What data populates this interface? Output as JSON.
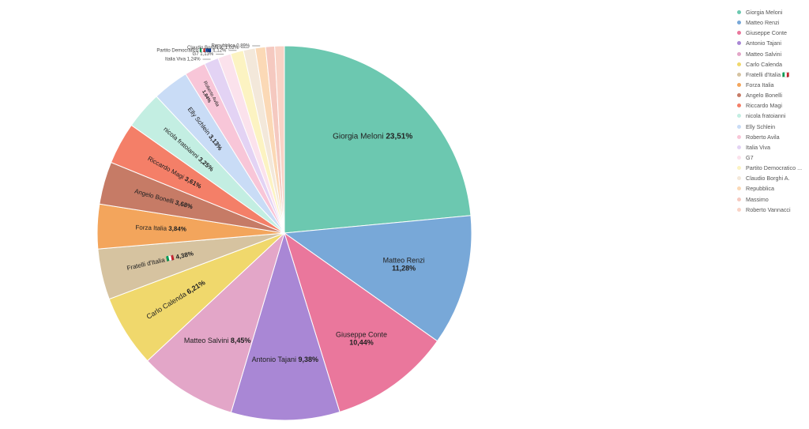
{
  "chart_data": {
    "type": "pie",
    "slices": [
      {
        "name": "Giorgia Meloni",
        "value": 23.51,
        "label": "23,51%",
        "color": "#6cc8b0"
      },
      {
        "name": "Matteo Renzi",
        "value": 11.28,
        "label": "11,28%",
        "color": "#78a8d8"
      },
      {
        "name": "Giuseppe Conte",
        "value": 10.44,
        "label": "10,44%",
        "color": "#ea779c"
      },
      {
        "name": "Antonio Tajani",
        "value": 9.38,
        "label": "9,38%",
        "color": "#a987d5"
      },
      {
        "name": "Matteo Salvini",
        "value": 8.45,
        "label": "8,45%",
        "color": "#e3a6c8"
      },
      {
        "name": "Carlo Calenda",
        "value": 6.21,
        "label": "6,21%",
        "color": "#f0d86c"
      },
      {
        "name": "Fratelli d'Italia 🇮🇹",
        "value": 4.38,
        "label": "4,38%",
        "color": "#d6c3a0"
      },
      {
        "name": "Forza Italia",
        "value": 3.84,
        "label": "3,84%",
        "color": "#f3a55c"
      },
      {
        "name": "Angelo Bonelli",
        "value": 3.68,
        "label": "3,68%",
        "color": "#c67b66"
      },
      {
        "name": "Riccardo Magi",
        "value": 3.61,
        "label": "3,61%",
        "color": "#f47f68"
      },
      {
        "name": "nicola fratoianni",
        "value": 3.25,
        "label": "3,25%",
        "color": "#c3eee2"
      },
      {
        "name": "Elly Schlein",
        "value": 3.13,
        "label": "3,13%",
        "color": "#c9dcf6"
      },
      {
        "name": "Roberto Avila",
        "value": 1.84,
        "label": "1,84%",
        "color": "#f8c6d8"
      },
      {
        "name": "Italia Viva",
        "value": 1.24,
        "label": "1,24%",
        "color": "#e3d3f4"
      },
      {
        "name": "G7",
        "value": 1.13,
        "label": "1,13%",
        "color": "#fbe2ec"
      },
      {
        "name": "Partito Democratico 🇮🇹🇪🇺",
        "value": 1.12,
        "label": "1,12%",
        "color": "#fcf3c2"
      },
      {
        "name": "Claudio Borghi A.",
        "value": 1.02,
        "label": "1,02%",
        "color": "#f3e8da"
      },
      {
        "name": "Repubblica",
        "value": 0.89,
        "label": "0,89%",
        "color": "#fbd9b6"
      },
      {
        "name": "Massimo",
        "value": 0.78,
        "label": "",
        "color": "#f5c9c0"
      },
      {
        "name": "Roberto Vannacci",
        "value": 0.83,
        "label": "",
        "color": "#f9d3c6"
      }
    ],
    "legend": {
      "position": "top-right",
      "items": [
        "Giorgia Meloni",
        "Matteo Renzi",
        "Giuseppe Conte",
        "Antonio Tajani",
        "Matteo Salvini",
        "Carlo Calenda",
        "Fratelli d'Italia 🇮🇹",
        "Forza Italia",
        "Angelo Bonelli",
        "Riccardo Magi",
        "nicola fratoianni",
        "Elly Schlein",
        "Roberto Avila",
        "Italia Viva",
        "G7",
        "Partito Democratico ...",
        "Claudio Borghi A.",
        "Repubblica",
        "Massimo",
        "Roberto Vannacci"
      ]
    }
  }
}
